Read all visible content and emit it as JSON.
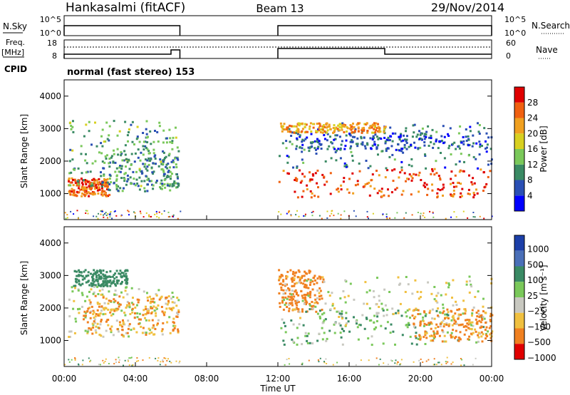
{
  "header": {
    "title": "Hankasalmi (fitACF)",
    "beam": "Beam 13",
    "date": "29/Nov/2014"
  },
  "status_panels": {
    "nsky": {
      "label": "N.Sky",
      "tick_top": "10^5",
      "tick_bottom": "10^0"
    },
    "nsearch": {
      "label": "N.Search",
      "tick_top": "10^5",
      "tick_bottom": "10^0"
    },
    "freq": {
      "label_line1": "Freq.",
      "label_line2": "[MHz]",
      "tick_top": "18",
      "tick_bottom": "8"
    },
    "nave": {
      "label": "Nave",
      "tick_top": "60",
      "tick_bottom": "0"
    },
    "cpid": {
      "label": "CPID",
      "text": "normal (fast stereo) 153"
    }
  },
  "axes": {
    "xlabel": "Time UT",
    "xticks": [
      "00:00",
      "04:00",
      "08:00",
      "12:00",
      "16:00",
      "20:00",
      "00:00"
    ],
    "ylabel": "Slant Range [km]",
    "yticks": [
      "1000",
      "2000",
      "3000",
      "4000"
    ]
  },
  "colorbars": {
    "power": {
      "label": "Power [dB]",
      "ticks": [
        "4",
        "8",
        "12",
        "16",
        "20",
        "24",
        "28"
      ]
    },
    "velocity": {
      "label": "Velocity [m s⁻¹]",
      "ticks": [
        "1000",
        "500",
        "100",
        "25",
        "−25",
        "−100",
        "−500",
        "−1000"
      ]
    }
  },
  "chart_data": [
    {
      "type": "heatmap",
      "name": "Power",
      "x_unit": "hours UT",
      "xlim": [
        0,
        24
      ],
      "ylim": [
        200,
        4500
      ],
      "colorbar_range": [
        0,
        32
      ],
      "colors": [
        "#0000ff",
        "#2a4fb4",
        "#3a8a64",
        "#7ac85a",
        "#d8d020",
        "#f0a020",
        "#f06010",
        "#e00000"
      ],
      "data_intervals_hours": [
        [
          0,
          6.5
        ],
        [
          12,
          24
        ]
      ],
      "regions": [
        {
          "t": [
            0.2,
            2.5
          ],
          "range_km": [
            950,
            1500
          ],
          "level_db": 26
        },
        {
          "t": [
            0.2,
            6.4
          ],
          "range_km": [
            1200,
            3300
          ],
          "level_db": 12
        },
        {
          "t": [
            2.0,
            6.4
          ],
          "range_km": [
            1100,
            2300
          ],
          "level_db": 10
        },
        {
          "t": [
            12.0,
            24.0
          ],
          "range_km": [
            900,
            1800
          ],
          "level_db": 27
        },
        {
          "t": [
            12.0,
            24.0
          ],
          "range_km": [
            1800,
            3200
          ],
          "level_db": 8
        },
        {
          "t": [
            13.0,
            24.0
          ],
          "range_km": [
            2400,
            2900
          ],
          "level_db": 6
        },
        {
          "t": [
            12.0,
            18.0
          ],
          "range_km": [
            2900,
            3200
          ],
          "level_db": 22
        }
      ]
    },
    {
      "type": "heatmap",
      "name": "Velocity",
      "x_unit": "hours UT",
      "xlim": [
        0,
        24
      ],
      "ylim": [
        200,
        4500
      ],
      "colorbar_values": [
        1000,
        500,
        100,
        25,
        -25,
        -100,
        -500,
        -1000
      ],
      "colors": [
        "#1c3fa8",
        "#4a6fb8",
        "#3a8a64",
        "#7ac85a",
        "#c8c8c0",
        "#f0c040",
        "#f08020",
        "#e00000"
      ],
      "data_intervals_hours": [
        [
          0,
          6.5
        ],
        [
          12,
          24
        ]
      ],
      "regions": [
        {
          "t": [
            0.5,
            3.5
          ],
          "range_km": [
            2700,
            3200
          ],
          "velocity": 300
        },
        {
          "t": [
            0.2,
            6.4
          ],
          "range_km": [
            1100,
            2700
          ],
          "velocity": 0
        },
        {
          "t": [
            1.0,
            6.4
          ],
          "range_km": [
            1200,
            2400
          ],
          "velocity": -120
        },
        {
          "t": [
            12.0,
            14.5
          ],
          "range_km": [
            1900,
            3200
          ],
          "velocity": -200
        },
        {
          "t": [
            12.0,
            24.0
          ],
          "range_km": [
            900,
            2000
          ],
          "velocity": 80
        },
        {
          "t": [
            12.0,
            24.0
          ],
          "range_km": [
            1500,
            3000
          ],
          "velocity": 0
        },
        {
          "t": [
            19.5,
            24.0
          ],
          "range_km": [
            1000,
            2000
          ],
          "velocity": -150
        }
      ]
    }
  ]
}
